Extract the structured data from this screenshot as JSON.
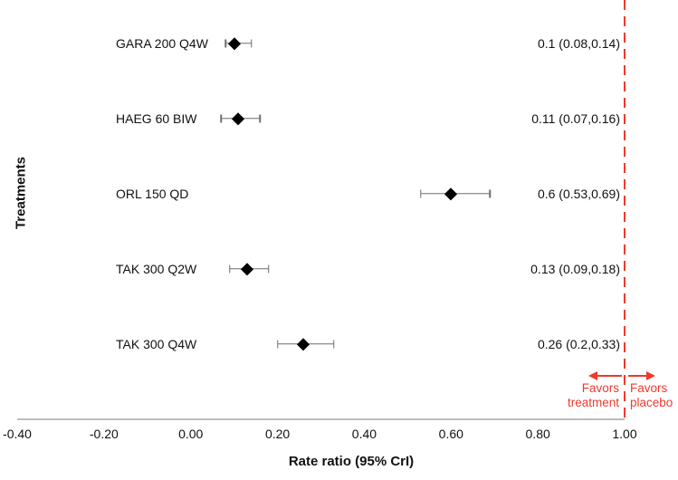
{
  "chart_data": {
    "type": "scatter",
    "variant": "forest-plot",
    "title": "",
    "xlabel": "Rate ratio (95% CrI)",
    "ylabel": "Treatments",
    "categories": [
      "GARA 200 Q4W",
      "HAEG 60 BIW",
      "ORL 150 QD",
      "TAK 300 Q2W",
      "TAK 300 Q4W"
    ],
    "series": [
      {
        "name": "Rate ratio (95% CrI)",
        "values": [
          0.1,
          0.11,
          0.6,
          0.13,
          0.26
        ],
        "ci_lower": [
          0.08,
          0.07,
          0.53,
          0.09,
          0.2
        ],
        "ci_upper": [
          0.14,
          0.16,
          0.69,
          0.18,
          0.33
        ],
        "labels": [
          "0.1 (0.08,0.14)",
          "0.11 (0.07,0.16)",
          "0.6 (0.53,0.69)",
          "0.13 (0.09,0.18)",
          "0.26 (0.2,0.33)"
        ]
      }
    ],
    "xtick_labels": [
      "-0.40",
      "-0.20",
      "0.00",
      "0.20",
      "0.40",
      "0.60",
      "0.80",
      "1.00"
    ],
    "xtick_values": [
      -0.4,
      -0.2,
      0.0,
      0.2,
      0.4,
      0.6,
      0.8,
      1.0
    ],
    "xlim": [
      -0.44,
      1.12
    ],
    "grid": false,
    "legend_position": "none",
    "reference_line": {
      "x": 1.0,
      "style": "dashed"
    },
    "annotations": {
      "favors_left": {
        "lines": [
          "Favors",
          "treatment"
        ],
        "arrow_direction": "left"
      },
      "favors_right": {
        "lines": [
          "Favors",
          "placebo"
        ],
        "arrow_direction": "right"
      }
    },
    "colors": {
      "marker": "#000000",
      "error_bar": "#6f6f6f",
      "axis_line": "#bdbdbd",
      "text": "#111111",
      "reference_red": "#ef3a2d",
      "background": "#ffffff"
    }
  }
}
